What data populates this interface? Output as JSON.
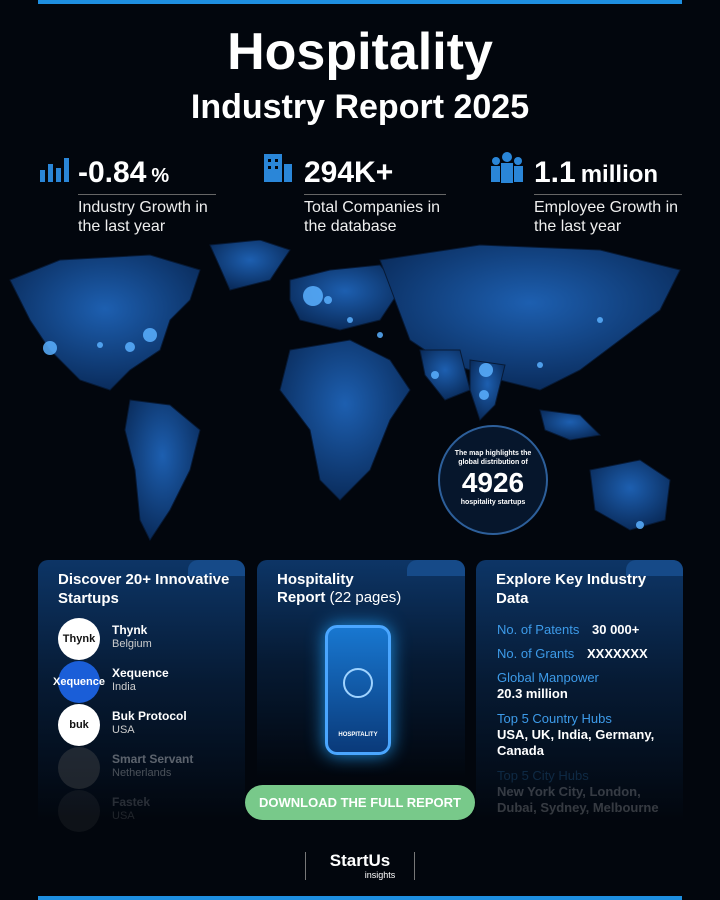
{
  "header": {
    "title": "Hospitality",
    "subtitle": "Industry Report 2025"
  },
  "stats": [
    {
      "value": "-0.84",
      "unit": "%",
      "label": "Industry Growth in the last year"
    },
    {
      "value": "294K+",
      "label": "Total Companies in the database"
    },
    {
      "value": "1.1",
      "unit": "million",
      "label": "Employee Growth in the last year"
    }
  ],
  "map_callout": {
    "text": "The map highlights the global distribution of",
    "number": "4926",
    "caption": "hospitality startups"
  },
  "startups_card": {
    "title": "Discover 20+ Innovative Startups",
    "items": [
      {
        "logo": "Thynk",
        "name": "Thynk",
        "country": "Belgium"
      },
      {
        "logo": "Xequence",
        "name": "Xequence",
        "country": "India"
      },
      {
        "logo": "buk",
        "name": "Buk Protocol",
        "country": "USA"
      },
      {
        "name": "Smart Servant",
        "country": "Netherlands"
      },
      {
        "name": "Fastek",
        "country": "USA"
      }
    ]
  },
  "report_card": {
    "title": "Hospitality",
    "title_bold": "Report",
    "pages": "(22 pages)",
    "screen_label": "HOSPITALITY"
  },
  "button": "DOWNLOAD THE FULL REPORT",
  "data_card": {
    "title": "Explore Key Industry Data",
    "items": [
      {
        "label": "No. of Patents",
        "value": "30 000+"
      },
      {
        "label": "No. of Grants",
        "value": "XXXXXXX"
      },
      {
        "label": "Global Manpower",
        "value": "20.3 million"
      },
      {
        "label": "Top 5 Country Hubs",
        "value": "USA, UK, India, Germany, Canada"
      },
      {
        "label": "Top 5 City Hubs",
        "value": "New York City, London, Dubai, Sydney, Melbourne"
      }
    ]
  },
  "footer": {
    "brand": "StartUs",
    "sub": "insights"
  }
}
